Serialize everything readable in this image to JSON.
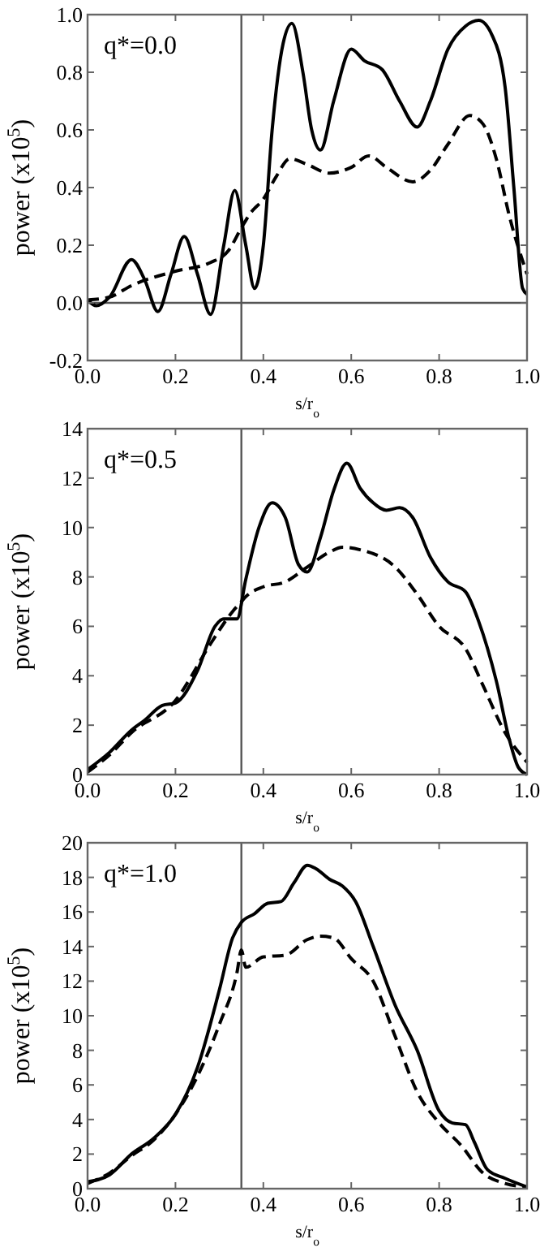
{
  "chart_data": [
    {
      "type": "line",
      "xlabel": "s/r$_{o}$",
      "ylabel": "power (x10$^{5}$)",
      "annotations": [
        "q*=0.0"
      ],
      "xlim": [
        0,
        1
      ],
      "ylim": [
        -0.2,
        1.0
      ],
      "xticks": [
        {
          "value": 0,
          "label": "0.0"
        },
        {
          "value": 0.2,
          "label": "0.2"
        },
        {
          "value": 0.4,
          "label": "0.4"
        },
        {
          "value": 0.6,
          "label": "0.6"
        },
        {
          "value": 0.8,
          "label": "0.8"
        },
        {
          "value": 1,
          "label": "1.0"
        }
      ],
      "yticks": [
        {
          "value": -0.2,
          "label": "-0.2"
        },
        {
          "value": 0,
          "label": "0.0"
        },
        {
          "value": 0.2,
          "label": "0.2"
        },
        {
          "value": 0.4,
          "label": "0.4"
        },
        {
          "value": 0.6,
          "label": "0.6"
        },
        {
          "value": 0.8,
          "label": "0.8"
        },
        {
          "value": 1,
          "label": "1.0"
        }
      ],
      "ref_lines": [
        {
          "axis": "x",
          "value": 0.35,
          "color": "#555555"
        },
        {
          "axis": "y",
          "value": 0,
          "color": "#555555"
        }
      ],
      "series": [
        {
          "color": "#000000",
          "line_style": "solid",
          "x": [
            0,
            0.02,
            0.05,
            0.1,
            0.13,
            0.16,
            0.19,
            0.22,
            0.25,
            0.28,
            0.31,
            0.335,
            0.36,
            0.38,
            0.4,
            0.42,
            0.445,
            0.465,
            0.49,
            0.51,
            0.53,
            0.56,
            0.6,
            0.63,
            0.67,
            0.71,
            0.75,
            0.78,
            0.82,
            0.86,
            0.89,
            0.92,
            0.95,
            0.97,
            0.99,
            1.0
          ],
          "values": [
            0.01,
            -0.01,
            0.02,
            0.15,
            0.08,
            -0.03,
            0.1,
            0.23,
            0.1,
            -0.04,
            0.2,
            0.39,
            0.2,
            0.05,
            0.2,
            0.6,
            0.9,
            0.97,
            0.8,
            0.6,
            0.53,
            0.7,
            0.88,
            0.84,
            0.81,
            0.7,
            0.61,
            0.7,
            0.88,
            0.96,
            0.98,
            0.93,
            0.75,
            0.4,
            0.05,
            0.03
          ]
        },
        {
          "color": "#000000",
          "line_style": "dashed",
          "x": [
            0,
            0.05,
            0.1,
            0.2,
            0.28,
            0.32,
            0.35,
            0.37,
            0.4,
            0.43,
            0.46,
            0.5,
            0.55,
            0.6,
            0.64,
            0.68,
            0.74,
            0.78,
            0.82,
            0.87,
            0.9,
            0.93,
            0.96,
            1.0
          ],
          "values": [
            0.01,
            0.02,
            0.06,
            0.11,
            0.14,
            0.18,
            0.26,
            0.31,
            0.36,
            0.44,
            0.5,
            0.48,
            0.45,
            0.47,
            0.51,
            0.47,
            0.42,
            0.46,
            0.55,
            0.65,
            0.62,
            0.5,
            0.3,
            0.1
          ]
        }
      ]
    },
    {
      "type": "line",
      "xlabel": "s/r$_{o}$",
      "ylabel": "power (x10$^{5}$)",
      "annotations": [
        "q*=0.5"
      ],
      "xlim": [
        0,
        1
      ],
      "ylim": [
        0,
        14
      ],
      "xticks": [
        {
          "value": 0,
          "label": "0.0"
        },
        {
          "value": 0.2,
          "label": "0.2"
        },
        {
          "value": 0.4,
          "label": "0.4"
        },
        {
          "value": 0.6,
          "label": "0.6"
        },
        {
          "value": 0.8,
          "label": "0.8"
        },
        {
          "value": 1,
          "label": "1.0"
        }
      ],
      "yticks": [
        0,
        2,
        4,
        6,
        8,
        10,
        12,
        14
      ],
      "ref_lines": [
        {
          "axis": "x",
          "value": 0.35,
          "color": "#555555"
        }
      ],
      "series": [
        {
          "color": "#000000",
          "line_style": "solid",
          "x": [
            0,
            0.05,
            0.1,
            0.13,
            0.17,
            0.2,
            0.25,
            0.29,
            0.31,
            0.34,
            0.36,
            0.39,
            0.42,
            0.45,
            0.48,
            0.5,
            0.53,
            0.56,
            0.59,
            0.62,
            0.65,
            0.68,
            0.71,
            0.74,
            0.78,
            0.82,
            0.86,
            0.89,
            0.93,
            0.96,
            0.98,
            1.0
          ],
          "values": [
            0.2,
            0.9,
            1.8,
            2.2,
            2.8,
            2.9,
            4.2,
            6.0,
            6.3,
            6.3,
            7.9,
            10.0,
            11.0,
            10.4,
            8.5,
            8.2,
            9.6,
            11.5,
            12.6,
            11.6,
            11.0,
            10.7,
            10.8,
            10.4,
            8.8,
            7.8,
            7.4,
            6.2,
            3.8,
            1.4,
            0.3,
            0.0
          ]
        },
        {
          "color": "#000000",
          "line_style": "dashed",
          "x": [
            0,
            0.05,
            0.1,
            0.2,
            0.28,
            0.33,
            0.35,
            0.36,
            0.4,
            0.45,
            0.5,
            0.55,
            0.58,
            0.62,
            0.7,
            0.75,
            0.8,
            0.86,
            0.9,
            0.95,
            1.0
          ],
          "values": [
            0.1,
            0.8,
            1.7,
            3.0,
            5.3,
            6.6,
            7.0,
            7.2,
            7.6,
            7.8,
            8.4,
            9.0,
            9.2,
            9.1,
            8.4,
            7.3,
            6.0,
            5.1,
            3.6,
            1.7,
            0.5
          ]
        }
      ]
    },
    {
      "type": "line",
      "xlabel": "s/r$_{o}$",
      "ylabel": "power (x10$^{5}$)",
      "annotations": [
        "q*=1.0"
      ],
      "xlim": [
        0,
        1
      ],
      "ylim": [
        0,
        20
      ],
      "xticks": [
        {
          "value": 0,
          "label": "0.0"
        },
        {
          "value": 0.2,
          "label": "0.2"
        },
        {
          "value": 0.4,
          "label": "0.4"
        },
        {
          "value": 0.6,
          "label": "0.6"
        },
        {
          "value": 0.8,
          "label": "0.8"
        },
        {
          "value": 1,
          "label": "1.0"
        }
      ],
      "yticks": [
        0,
        2,
        4,
        6,
        8,
        10,
        12,
        14,
        16,
        18,
        20
      ],
      "ref_lines": [
        {
          "axis": "x",
          "value": 0.35,
          "color": "#555555"
        }
      ],
      "series": [
        {
          "color": "#000000",
          "line_style": "solid",
          "x": [
            0,
            0.05,
            0.1,
            0.15,
            0.2,
            0.25,
            0.3,
            0.33,
            0.35,
            0.38,
            0.41,
            0.44,
            0.47,
            0.5,
            0.52,
            0.55,
            0.58,
            0.61,
            0.65,
            0.7,
            0.75,
            0.8,
            0.83,
            0.86,
            0.88,
            0.91,
            0.95,
            1.0
          ],
          "values": [
            0.4,
            0.8,
            2.0,
            2.9,
            4.3,
            7.0,
            11.5,
            14.5,
            15.4,
            15.9,
            16.5,
            16.6,
            17.7,
            18.7,
            18.5,
            17.9,
            17.5,
            16.6,
            14.0,
            10.6,
            8.0,
            4.5,
            3.8,
            3.7,
            2.7,
            1.1,
            0.6,
            0.1
          ]
        },
        {
          "color": "#000000",
          "line_style": "dashed",
          "x": [
            0,
            0.05,
            0.1,
            0.15,
            0.2,
            0.25,
            0.3,
            0.34,
            0.35,
            0.36,
            0.4,
            0.45,
            0.5,
            0.53,
            0.56,
            0.6,
            0.65,
            0.7,
            0.75,
            0.8,
            0.85,
            0.9,
            0.95,
            1.0
          ],
          "values": [
            0.3,
            0.9,
            1.9,
            2.8,
            4.3,
            6.5,
            9.5,
            12.5,
            13.8,
            12.8,
            13.4,
            13.5,
            14.4,
            14.6,
            14.5,
            13.3,
            12.0,
            8.8,
            5.6,
            3.8,
            2.5,
            0.9,
            0.3,
            0.1
          ]
        }
      ]
    }
  ]
}
